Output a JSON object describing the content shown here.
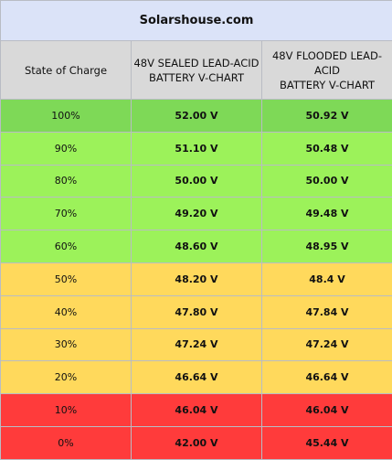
{
  "title": "Solarshouse.com",
  "headers": {
    "state_of_charge": "State of Charge",
    "sealed": "48V SEALED LEAD-ACID\nBATTERY V-CHART",
    "flooded": "48V FLOODED LEAD-ACID\nBATTERY V-CHART"
  },
  "rows": [
    {
      "soc": "100%",
      "sealed": "52.00 V",
      "flooded": "50.92 V",
      "color": "#7ed957"
    },
    {
      "soc": "90%",
      "sealed": "51.10 V",
      "flooded": "50.48 V",
      "color": "#9cf25a"
    },
    {
      "soc": "80%",
      "sealed": "50.00 V",
      "flooded": "50.00 V",
      "color": "#9cf25a"
    },
    {
      "soc": "70%",
      "sealed": "49.20 V",
      "flooded": "49.48 V",
      "color": "#9cf25a"
    },
    {
      "soc": "60%",
      "sealed": "48.60 V",
      "flooded": "48.95 V",
      "color": "#9cf25a"
    },
    {
      "soc": "50%",
      "sealed": "48.20 V",
      "flooded": "48.4 V",
      "color": "#ffd95c"
    },
    {
      "soc": "40%",
      "sealed": "47.80 V",
      "flooded": "47.84 V",
      "color": "#ffd95c"
    },
    {
      "soc": "30%",
      "sealed": "47.24 V",
      "flooded": "47.24 V",
      "color": "#ffd95c"
    },
    {
      "soc": "20%",
      "sealed": "46.64 V",
      "flooded": "46.64 V",
      "color": "#ffd95c"
    },
    {
      "soc": "10%",
      "sealed": "46.04 V",
      "flooded": "46.04 V",
      "color": "#ff3b3b"
    },
    {
      "soc": "0%",
      "sealed": "42.00 V",
      "flooded": "45.44 V",
      "color": "#ff3b3b"
    }
  ]
}
